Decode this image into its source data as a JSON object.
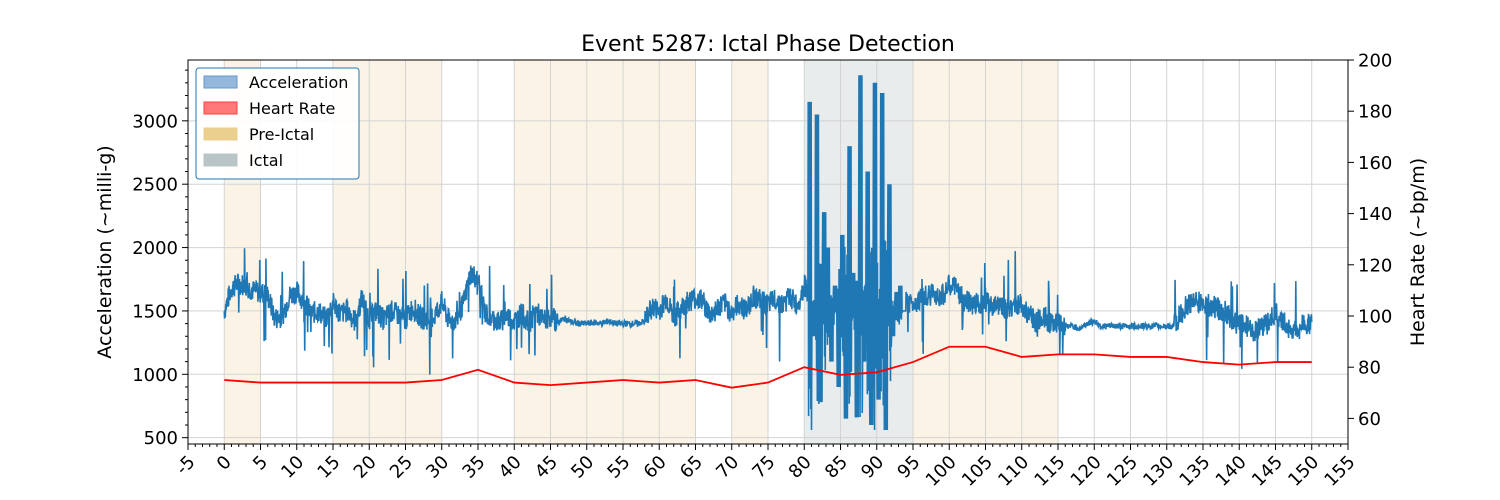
{
  "chart_data": {
    "type": "line",
    "title": "Event 5287: Ictal Phase Detection",
    "ylabel_left": "Acceleration (~milli-g)",
    "ylabel_right": "Heart Rate (~bp/m)",
    "xlim": [
      -5,
      155
    ],
    "ylim_left": [
      450,
      3480
    ],
    "ylim_right": [
      50,
      200
    ],
    "x_ticks": [
      -5,
      0,
      5,
      10,
      15,
      20,
      25,
      30,
      35,
      40,
      45,
      50,
      55,
      60,
      65,
      70,
      75,
      80,
      85,
      90,
      95,
      100,
      105,
      110,
      115,
      120,
      125,
      130,
      135,
      140,
      145,
      150,
      155
    ],
    "y_ticks_left": [
      500,
      1000,
      1500,
      2000,
      2500,
      3000
    ],
    "y_ticks_right": [
      60,
      80,
      100,
      120,
      140,
      160,
      180,
      200
    ],
    "grid": true,
    "legend_position": "top-left",
    "legend": [
      {
        "label": "Acceleration",
        "color": "#6699cc"
      },
      {
        "label": "Heart Rate",
        "color": "#ff4040"
      },
      {
        "label": "Pre-Ictal",
        "color": "#ebcf8c"
      },
      {
        "label": "Ictal",
        "color": "#b8c4c6"
      }
    ],
    "pre_ictal_regions": [
      [
        0,
        5
      ],
      [
        15,
        30
      ],
      [
        40,
        65
      ],
      [
        70,
        75
      ],
      [
        95,
        115
      ]
    ],
    "ictal_regions": [
      [
        80,
        95
      ]
    ],
    "series": [
      {
        "name": "Heart Rate",
        "axis": "right",
        "color": "#ff0000",
        "x": [
          0,
          5,
          10,
          15,
          20,
          25,
          30,
          35,
          40,
          45,
          50,
          55,
          60,
          65,
          70,
          75,
          80,
          85,
          90,
          95,
          100,
          105,
          110,
          115,
          120,
          125,
          130,
          135,
          140,
          145,
          150
        ],
        "values": [
          75,
          74,
          74,
          74,
          74,
          74,
          75,
          79,
          74,
          73,
          74,
          75,
          74,
          75,
          72,
          74,
          80,
          77,
          78,
          82,
          88,
          88,
          84,
          85,
          85,
          84,
          84,
          82,
          81,
          82,
          82
        ]
      },
      {
        "name": "Acceleration",
        "axis": "left",
        "color": "#1f77b4",
        "x": [
          0,
          1,
          2,
          3,
          4,
          5,
          6,
          7,
          8,
          9,
          10,
          11,
          12,
          13,
          14,
          15,
          16,
          17,
          18,
          19,
          20,
          21,
          22,
          23,
          24,
          25,
          26,
          27,
          28,
          29,
          30,
          31,
          32,
          33,
          34,
          35,
          36,
          37,
          38,
          39,
          40,
          41,
          42,
          43,
          44,
          45,
          46,
          47,
          48,
          49,
          50,
          51,
          52,
          53,
          54,
          55,
          56,
          57,
          58,
          59,
          60,
          61,
          62,
          63,
          64,
          65,
          66,
          67,
          68,
          69,
          70,
          71,
          72,
          73,
          74,
          75,
          76,
          77,
          78,
          79,
          80,
          81,
          82,
          83,
          84,
          85,
          86,
          87,
          88,
          89,
          90,
          91,
          92,
          93,
          94,
          95,
          96,
          97,
          98,
          99,
          100,
          101,
          102,
          103,
          104,
          105,
          106,
          107,
          108,
          109,
          110,
          111,
          112,
          113,
          114,
          115,
          116,
          117,
          118,
          119,
          120,
          121,
          122,
          123,
          124,
          125,
          126,
          127,
          128,
          129,
          130,
          131,
          132,
          133,
          134,
          135,
          136,
          137,
          138,
          139,
          140,
          141,
          142,
          143,
          144,
          145,
          146,
          147,
          148,
          149,
          150
        ],
        "values": [
          1500,
          1680,
          1720,
          1700,
          1660,
          1650,
          1620,
          1440,
          1460,
          1620,
          1650,
          1580,
          1480,
          1500,
          1440,
          1560,
          1480,
          1500,
          1420,
          1600,
          1440,
          1500,
          1430,
          1500,
          1470,
          1430,
          1530,
          1450,
          1430,
          1460,
          1570,
          1420,
          1430,
          1560,
          1800,
          1750,
          1480,
          1440,
          1410,
          1460,
          1420,
          1480,
          1400,
          1500,
          1420,
          1460,
          1410,
          1440,
          1410,
          1400,
          1400,
          1410,
          1400,
          1420,
          1400,
          1400,
          1400,
          1400,
          1420,
          1530,
          1500,
          1600,
          1440,
          1520,
          1580,
          1600,
          1580,
          1460,
          1520,
          1560,
          1480,
          1560,
          1500,
          1620,
          1580,
          1540,
          1600,
          1540,
          1620,
          1540,
          1700,
          1620,
          1500,
          1580,
          1620,
          1500,
          1440,
          1600,
          1800,
          1300,
          1500,
          1360,
          1680,
          1560,
          1560,
          1560,
          1600,
          1620,
          1640,
          1620,
          1700,
          1680,
          1580,
          1560,
          1560,
          1580,
          1520,
          1560,
          1500,
          1560,
          1540,
          1480,
          1400,
          1460,
          1400,
          1420,
          1380,
          1380,
          1360,
          1400,
          1420,
          1380,
          1380,
          1380,
          1380,
          1380,
          1380,
          1380,
          1380,
          1380,
          1380,
          1380,
          1480,
          1560,
          1580,
          1560,
          1540,
          1520,
          1500,
          1420,
          1400,
          1380,
          1340,
          1380,
          1400,
          1480,
          1420,
          1360,
          1340,
          1400,
          1400
        ]
      }
    ],
    "ictal_burst": {
      "x": [
        80.5,
        81,
        81.5,
        82,
        82.5,
        83,
        83.5,
        84,
        84.5,
        85,
        85.5,
        86,
        86.5,
        87,
        87.5,
        88,
        88.5,
        89,
        89.5,
        90,
        90.5,
        91,
        91.5,
        92,
        92.5,
        93,
        93.5,
        94
      ],
      "values": [
        3150,
        1300,
        3050,
        780,
        2280,
        2000,
        1100,
        1700,
        900,
        2100,
        650,
        2800,
        1800,
        660,
        3360,
        1100,
        2600,
        600,
        3300,
        800,
        3220,
        550,
        2500,
        1300,
        1650,
        1700,
        1500,
        1900
      ]
    }
  }
}
